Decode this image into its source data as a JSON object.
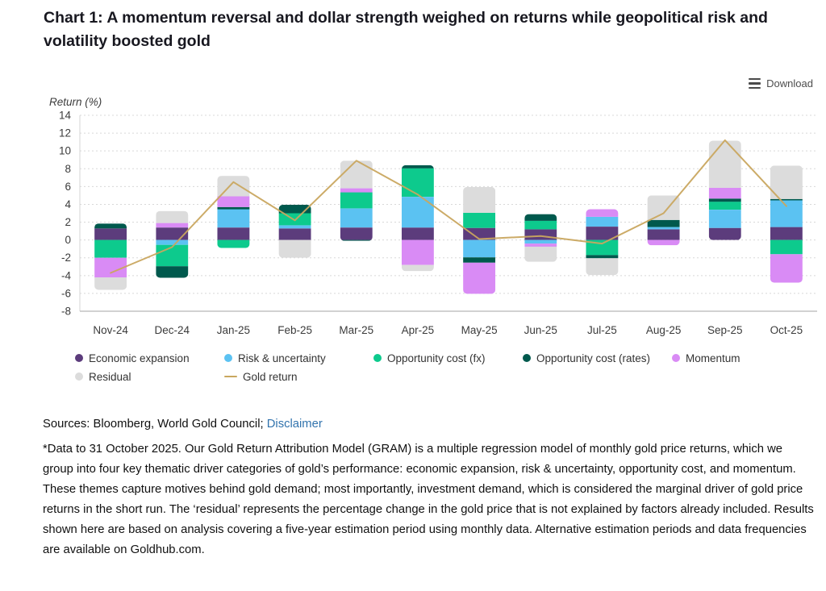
{
  "title": "Chart 1: A momentum reversal and dollar strength weighed on returns while geopolitical risk and volatility boosted gold",
  "toolbar": {
    "download_label": "Download",
    "download_icon": "hamburger-menu-icon"
  },
  "chart_data": {
    "type": "bar",
    "stacked": true,
    "title": "",
    "xlabel": "",
    "ylabel": "Return (%)",
    "ylim": [
      -8,
      14
    ],
    "ytick_step": 2,
    "grid": "horizontal-dotted",
    "legend_position": "bottom",
    "categories": [
      "Nov-24",
      "Dec-24",
      "Jan-25",
      "Feb-25",
      "Mar-25",
      "Apr-25",
      "May-25",
      "Jun-25",
      "Jul-25",
      "Aug-25",
      "Sep-25",
      "Oct-25"
    ],
    "series": [
      {
        "name": "Economic expansion",
        "color": "#5c3c7c",
        "values": [
          1.3,
          1.4,
          1.4,
          1.3,
          1.4,
          1.4,
          1.35,
          1.2,
          1.5,
          1.2,
          1.35,
          1.45
        ]
      },
      {
        "name": "Risk & uncertainty",
        "color": "#5bc2f2",
        "values": [
          0,
          -0.55,
          2.05,
          0.35,
          2.15,
          3.45,
          -1.95,
          -0.4,
          1.1,
          0.25,
          2.05,
          3.0
        ]
      },
      {
        "name": "Opportunity cost (fx)",
        "color": "#0dca8d",
        "values": [
          -2.0,
          -2.4,
          -0.9,
          1.35,
          1.8,
          3.2,
          1.7,
          0.95,
          -1.7,
          0,
          0.9,
          -1.6
        ]
      },
      {
        "name": "Opportunity cost (rates)",
        "color": "#00594d",
        "values": [
          0.55,
          -1.3,
          0.25,
          0.95,
          -0.1,
          0.35,
          -0.6,
          0.75,
          -0.35,
          0.8,
          0.35,
          0.15
        ]
      },
      {
        "name": "Momentum",
        "color": "#d98bf5",
        "values": [
          -2.2,
          0.5,
          1.2,
          0,
          0.45,
          -2.8,
          -3.5,
          -0.35,
          0.85,
          -0.6,
          1.2,
          -3.2
        ]
      },
      {
        "name": "Residual",
        "color": "#dcdcdc",
        "values": [
          -1.4,
          1.35,
          2.3,
          -2.0,
          3.1,
          -0.7,
          2.9,
          -1.7,
          -1.9,
          2.75,
          5.3,
          3.75
        ]
      }
    ],
    "line_series": {
      "name": "Gold return",
      "color": "#c9a75f",
      "values": [
        -3.7,
        -0.8,
        6.5,
        2.2,
        8.9,
        5.1,
        0.1,
        0.45,
        -0.4,
        3.0,
        11.2,
        3.8
      ]
    }
  },
  "footer": {
    "sources_prefix": "Sources: Bloomberg, World Gold Council;",
    "disclaimer_label": "Disclaimer",
    "note": "*Data to 31 October 2025. Our Gold Return Attribution Model (GRAM) is a multiple regression model of monthly gold price returns, which we group into four key thematic driver categories of gold’s performance: economic expansion, risk & uncertainty, opportunity cost, and momentum. These themes capture motives behind gold demand; most importantly, investment demand, which is considered the marginal driver of gold price returns in the short run. The ‘residual’ represents the percentage change in the gold price that is not explained by factors already included. Results shown here are based on analysis covering a five-year estimation period using monthly data. Alternative estimation periods and data frequencies are available on Goldhub.com."
  }
}
